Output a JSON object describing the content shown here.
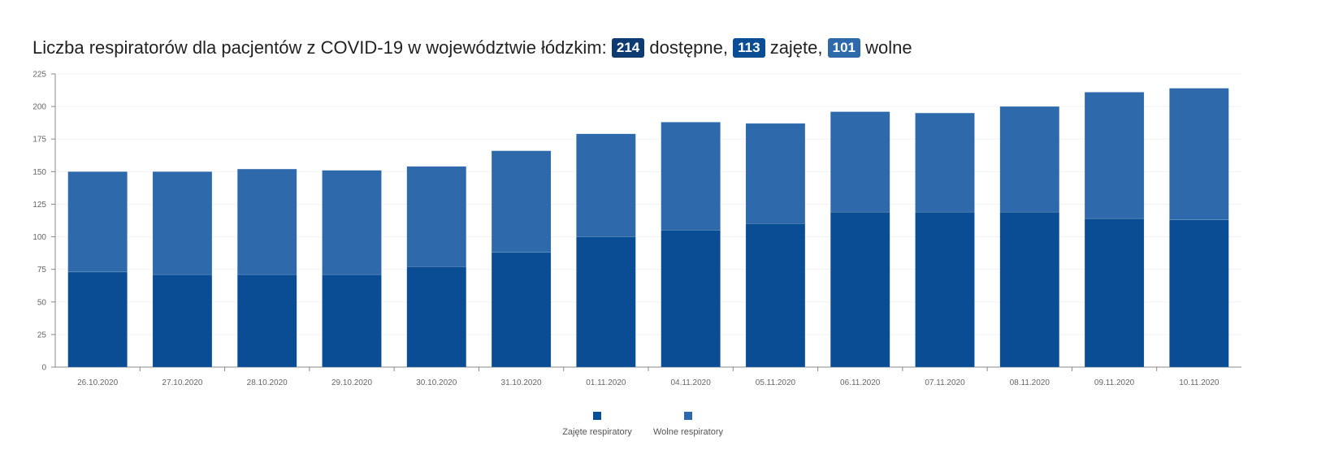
{
  "title": {
    "prefix": "Liczba respiratorów dla pacjentów z COVID-19 w województwie łódzkim:",
    "badges": [
      {
        "value": "214",
        "color": "#0d3b72"
      },
      {
        "value": "113",
        "color": "#0a4d94"
      },
      {
        "value": "101",
        "color": "#2e6aab"
      }
    ],
    "word_available": "dostępne,",
    "word_occupied": "zajęte,",
    "word_free": "wolne"
  },
  "chart_data": {
    "type": "bar",
    "stacked": true,
    "categories": [
      "26.10.2020",
      "27.10.2020",
      "28.10.2020",
      "29.10.2020",
      "30.10.2020",
      "31.10.2020",
      "01.11.2020",
      "04.11.2020",
      "05.11.2020",
      "06.11.2020",
      "07.11.2020",
      "08.11.2020",
      "09.11.2020",
      "10.11.2020"
    ],
    "series": [
      {
        "name": "Zajęte respiratory",
        "color": "#0a4d94",
        "values": [
          73,
          71,
          71,
          71,
          77,
          88,
          100,
          105,
          110,
          119,
          119,
          119,
          114,
          113
        ]
      },
      {
        "name": "Wolne respiratory",
        "color": "#2e6aab",
        "values": [
          77,
          79,
          81,
          80,
          77,
          78,
          79,
          83,
          77,
          77,
          76,
          81,
          97,
          101
        ]
      }
    ],
    "ylim": [
      0,
      225
    ],
    "yticks": [
      0,
      25,
      50,
      75,
      100,
      125,
      150,
      175,
      200,
      225
    ],
    "grid": true,
    "legend": "bottom-center"
  }
}
